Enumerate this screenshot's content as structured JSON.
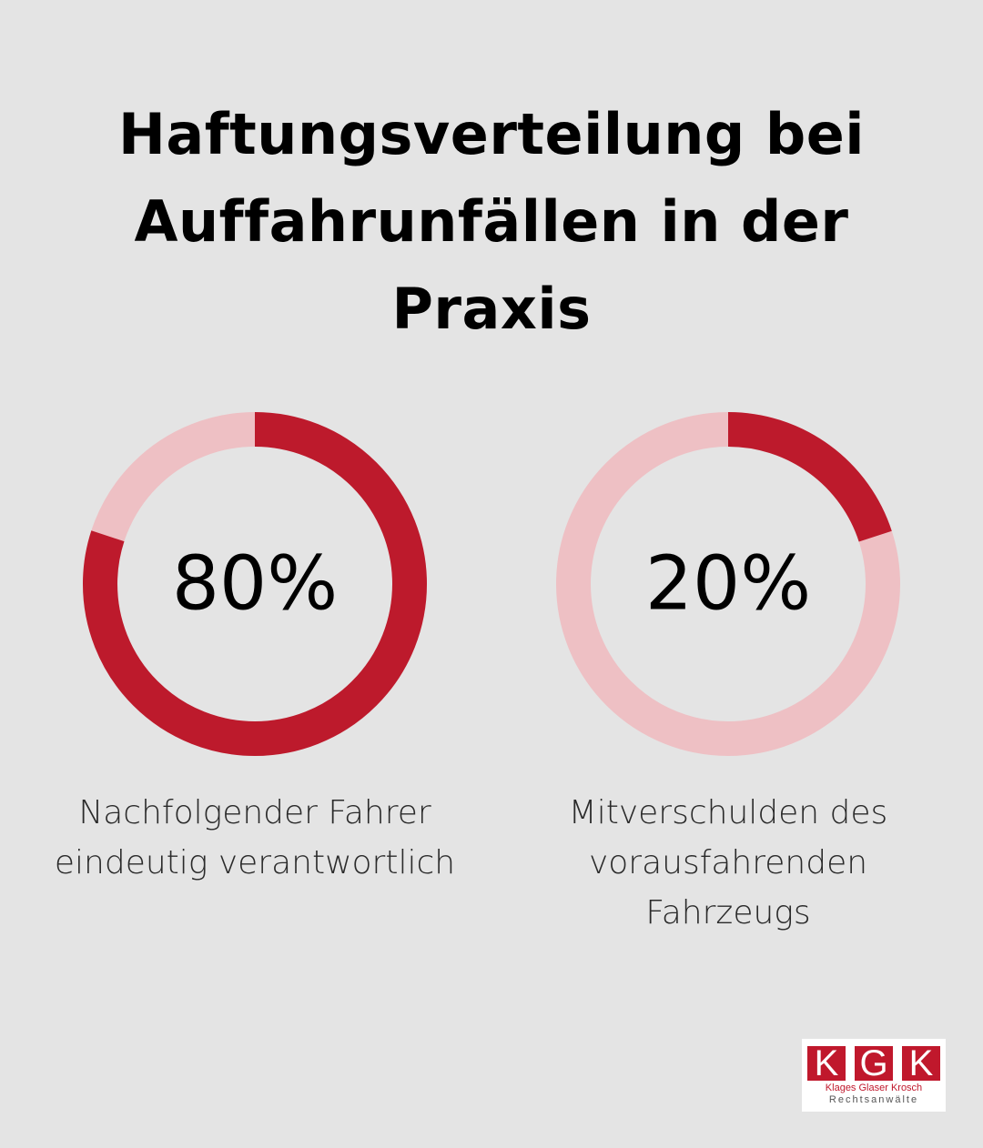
{
  "title_lines": [
    "Haftungsverteilung bei",
    "Auffahrunfällen in der",
    "Praxis"
  ],
  "colors": {
    "background": "#e4e4e4",
    "accent": "#bd1a2c",
    "track": "#eec0c4"
  },
  "chart_data": [
    {
      "type": "pie",
      "variant": "donut",
      "value": 80,
      "max": 100,
      "label": "80%",
      "caption_lines": [
        "Nachfolgender Fahrer",
        "eindeutig verantwortlich"
      ]
    },
    {
      "type": "pie",
      "variant": "donut",
      "value": 20,
      "max": 100,
      "label": "20%",
      "caption_lines": [
        "Mitverschulden des",
        "vorausfahrenden",
        "Fahrzeugs"
      ]
    }
  ],
  "logo": {
    "letters": [
      "K",
      "G",
      "K"
    ],
    "names": "Klages Glaser Krosch",
    "subtitle": "Rechtsanwälte"
  }
}
